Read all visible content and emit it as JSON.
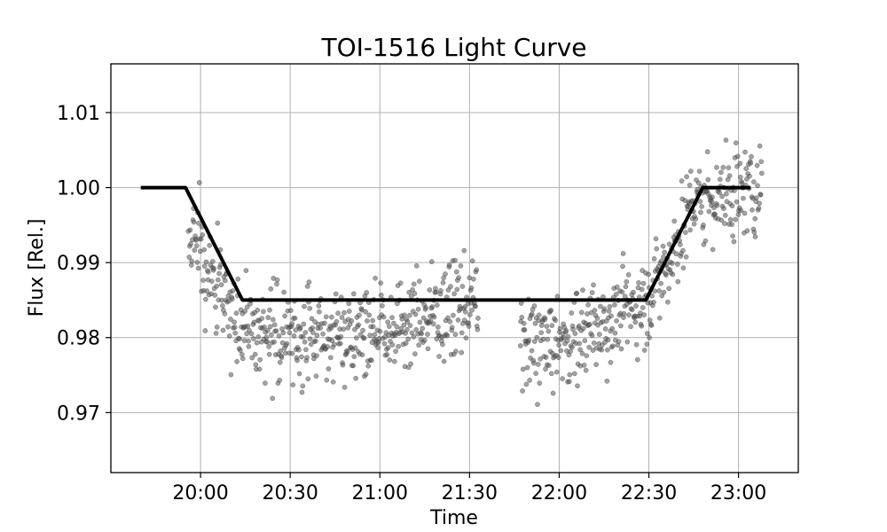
{
  "chart_data": {
    "type": "scatter",
    "title": "TOI-1516 Light Curve",
    "xlabel": "Time",
    "ylabel": "Flux [Rel.]",
    "xlim": [
      "19:30",
      "23:20"
    ],
    "ylim": [
      0.962,
      1.0165
    ],
    "grid": true,
    "x_ticks": [
      "20:00",
      "20:30",
      "21:00",
      "21:30",
      "22:00",
      "22:30",
      "23:00"
    ],
    "y_ticks": [
      "0.97",
      "0.98",
      "0.99",
      "1.00",
      "1.01"
    ],
    "colors": {
      "points": "#555555",
      "model": "#000000",
      "grid": "#b0b0b0"
    },
    "series": [
      {
        "type": "scatter",
        "segments": [
          {
            "start": "19:56",
            "end": "21:33"
          },
          {
            "start": "21:47",
            "end": "23:08"
          }
        ],
        "profile": [
          {
            "t": "19:56",
            "flux": 0.993
          },
          {
            "t": "20:00",
            "flux": 0.99
          },
          {
            "t": "20:15",
            "flux": 0.981
          },
          {
            "t": "20:30",
            "flux": 0.98
          },
          {
            "t": "21:00",
            "flux": 0.981
          },
          {
            "t": "21:33",
            "flux": 0.985
          },
          {
            "t": "21:47",
            "flux": 0.979
          },
          {
            "t": "22:00",
            "flux": 0.979
          },
          {
            "t": "22:30",
            "flux": 0.985
          },
          {
            "t": "22:45",
            "flux": 0.998
          },
          {
            "t": "23:08",
            "flux": 1.0
          }
        ],
        "scatter_sigma": 0.0055
      },
      {
        "type": "line",
        "x": [
          "19:40",
          "19:55",
          "20:14",
          "22:29",
          "22:48",
          "23:04"
        ],
        "y": [
          1.0,
          1.0,
          0.985,
          0.985,
          1.0,
          1.0
        ]
      }
    ]
  }
}
